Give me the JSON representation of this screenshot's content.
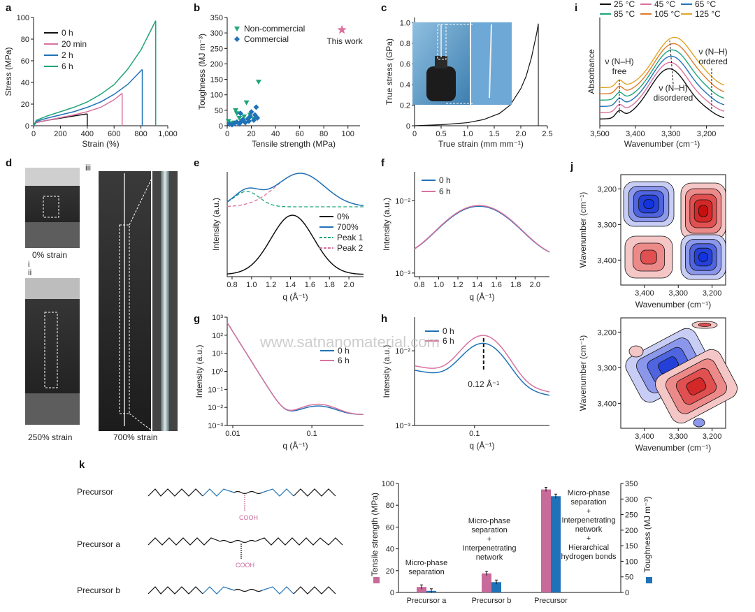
{
  "watermark": "www.satnanomaterial.com",
  "panels": {
    "a": {
      "letter": "a"
    },
    "b": {
      "letter": "b"
    },
    "c": {
      "letter": "c"
    },
    "d": {
      "letter": "d",
      "captions": [
        "i",
        "ii",
        "iii",
        "0% strain",
        "250% strain",
        "700% strain"
      ]
    },
    "e": {
      "letter": "e"
    },
    "f": {
      "letter": "f"
    },
    "g": {
      "letter": "g"
    },
    "h": {
      "letter": "h",
      "annotation": "0.12 Å⁻¹"
    },
    "i": {
      "letter": "i",
      "annotations": [
        "ν (N–H)",
        "free",
        "ν (N–H)",
        "disordered",
        "ν (N–H)",
        "ordered"
      ]
    },
    "j": {
      "letter": "j"
    },
    "k": {
      "letter": "k",
      "labels": [
        "Precursor",
        "Precursor a",
        "Precursor b"
      ],
      "cooh": "COOH"
    }
  },
  "colors": {
    "black": "#111111",
    "pink": "#d9739f",
    "blue": "#1f72b8",
    "green": "#1fa57a",
    "teal": "#26a7a0",
    "orange": "#e07b2a",
    "gold": "#e0a424",
    "ink_blue": "#1f72b8",
    "cooh": "#c86a9a"
  },
  "chart_data": [
    {
      "id": "a",
      "type": "line",
      "xlabel": "Strain (%)",
      "ylabel": "Stress (MPa)",
      "xlim": [
        0,
        1000
      ],
      "ylim": [
        0,
        100
      ],
      "xticks": [
        "0",
        "200",
        "400",
        "600",
        "800",
        "1,000"
      ],
      "yticks": [
        "0",
        "20",
        "40",
        "60",
        "80",
        "100"
      ],
      "series": [
        {
          "name": "0 h",
          "color": "#111111",
          "x": [
            0,
            20,
            100,
            200,
            300,
            400
          ],
          "y": [
            0,
            3,
            5,
            7,
            9,
            11
          ]
        },
        {
          "name": "20 min",
          "color": "#d9739f",
          "x": [
            0,
            20,
            100,
            200,
            300,
            400,
            500,
            600,
            660
          ],
          "y": [
            0,
            3,
            5,
            7.5,
            10,
            13,
            17,
            24,
            30
          ]
        },
        {
          "name": "2 h",
          "color": "#1f72b8",
          "x": [
            0,
            20,
            100,
            200,
            300,
            400,
            500,
            600,
            700,
            810
          ],
          "y": [
            0,
            4,
            7,
            10,
            13,
            17,
            22,
            29,
            38,
            52
          ]
        },
        {
          "name": "6 h",
          "color": "#1fa57a",
          "x": [
            0,
            20,
            100,
            200,
            300,
            400,
            500,
            600,
            700,
            800,
            910
          ],
          "y": [
            0,
            5,
            9,
            13,
            17,
            22,
            29,
            38,
            52,
            70,
            97
          ]
        }
      ]
    },
    {
      "id": "b",
      "type": "scatter",
      "xlabel": "Tensile strength (MPa)",
      "ylabel": "Toughness (MJ m⁻³)",
      "xlim": [
        0,
        110
      ],
      "ylim": [
        0,
        350
      ],
      "xticks": [
        "0",
        "20",
        "40",
        "60",
        "80",
        "100"
      ],
      "yticks": [
        "0",
        "50",
        "100",
        "150",
        "200",
        "250",
        "300",
        "350"
      ],
      "series": [
        {
          "name": "Non-commercial",
          "marker": "triangle",
          "color": "#1fa57a",
          "x": [
            1,
            3,
            7,
            8,
            10,
            12,
            16,
            19,
            26,
            22,
            14,
            6
          ],
          "y": [
            15,
            8,
            50,
            40,
            25,
            15,
            75,
            35,
            142,
            22,
            30,
            10
          ]
        },
        {
          "name": "Commercial",
          "marker": "diamond",
          "color": "#1f72b8",
          "x": [
            2,
            4,
            6,
            8,
            10,
            12,
            13,
            15,
            17,
            19,
            20,
            22,
            23,
            24,
            25,
            11,
            18
          ],
          "y": [
            5,
            3,
            8,
            12,
            6,
            15,
            20,
            10,
            22,
            30,
            45,
            18,
            35,
            60,
            25,
            40,
            15
          ]
        },
        {
          "name": "This work",
          "marker": "star",
          "color": "#d9739f",
          "x": [
            95
          ],
          "y": [
            310
          ]
        }
      ]
    },
    {
      "id": "c",
      "type": "line",
      "xlabel": "True strain (mm mm⁻¹)",
      "ylabel": "True stress (GPa)",
      "xlim": [
        0,
        2.5
      ],
      "ylim": [
        0,
        1.05
      ],
      "xticks": [
        "0",
        "0.5",
        "1.0",
        "1.5",
        "2.0",
        "2.5"
      ],
      "yticks": [
        "0",
        "0.2",
        "0.4",
        "0.6",
        "0.8",
        "1.0"
      ],
      "series": [
        {
          "color": "#111111",
          "x": [
            0,
            0.5,
            1.0,
            1.3,
            1.6,
            1.8,
            2.0,
            2.1,
            2.2,
            2.3,
            2.33
          ],
          "y": [
            0,
            0.01,
            0.03,
            0.06,
            0.12,
            0.2,
            0.36,
            0.48,
            0.66,
            0.9,
            0.99
          ]
        }
      ]
    },
    {
      "id": "i",
      "type": "line",
      "xlabel": "Wavenumber (cm⁻¹)",
      "ylabel": "Absorbance",
      "xlim": [
        3500,
        3150
      ],
      "xticks": [
        "3,500",
        "3,400",
        "3,300",
        "3,200"
      ],
      "series": [
        {
          "name": "25 °C",
          "color": "#111111"
        },
        {
          "name": "45 °C",
          "color": "#d9739f"
        },
        {
          "name": "65 °C",
          "color": "#1f72b8"
        },
        {
          "name": "85 °C",
          "color": "#1fa57a"
        },
        {
          "name": "105 °C",
          "color": "#e07b2a"
        },
        {
          "name": "125 °C",
          "color": "#e0a424"
        }
      ]
    },
    {
      "id": "e",
      "type": "line",
      "xlabel": "q (Å⁻¹)",
      "ylabel": "Intensity (a.u.)",
      "xlim": [
        0.75,
        2.15
      ],
      "xticks": [
        "0.8",
        "1.0",
        "1.2",
        "1.4",
        "1.6",
        "1.8",
        "2.0"
      ],
      "series": [
        {
          "name": "0%",
          "color": "#111111"
        },
        {
          "name": "700%",
          "color": "#1f72b8"
        },
        {
          "name": "Peak 1",
          "color": "#1fa57a",
          "dash": true
        },
        {
          "name": "Peak 2",
          "color": "#d9739f",
          "dash": true
        }
      ]
    },
    {
      "id": "f",
      "type": "line",
      "xlabel": "q (Å⁻¹)",
      "ylabel": "Intensity (a.u.)",
      "xlim": [
        0.75,
        2.15
      ],
      "yscale": "log",
      "xticks": [
        "0.8",
        "1.0",
        "1.2",
        "1.4",
        "1.6",
        "1.8",
        "2.0"
      ],
      "yticks": [
        "10⁻³",
        "10⁻²"
      ],
      "series": [
        {
          "name": "0 h",
          "color": "#1f72b8"
        },
        {
          "name": "6 h",
          "color": "#d9739f"
        }
      ]
    },
    {
      "id": "g",
      "type": "line",
      "xlabel": "q (Å⁻¹)",
      "ylabel": "Intensity (a.u.)",
      "xscale": "log",
      "yscale": "log",
      "xticks": [
        "0.01",
        "0.1"
      ],
      "yticks": [
        "10⁻³",
        "10⁻²",
        "10⁻¹",
        "10⁰",
        "10¹",
        "10²",
        "10³"
      ],
      "series": [
        {
          "name": "0 h",
          "color": "#1f72b8"
        },
        {
          "name": "6 h",
          "color": "#d9739f"
        }
      ]
    },
    {
      "id": "h",
      "type": "line",
      "xlabel": "q (Å⁻¹)",
      "ylabel": "Intensity (a.u.)",
      "xscale": "log",
      "yscale": "log",
      "xticks": [
        "0.1"
      ],
      "yticks": [
        "10⁻³",
        "10⁻²"
      ],
      "series": [
        {
          "name": "0 h",
          "color": "#1f72b8"
        },
        {
          "name": "6 h",
          "color": "#d9739f"
        }
      ]
    },
    {
      "id": "j",
      "type": "heatmap",
      "xlabel": "Wavenumber (cm⁻¹)",
      "ylabel": "Wavenumber (cm⁻¹)",
      "xticks": [
        "3,400",
        "3,300",
        "3,200"
      ],
      "yticks": [
        "3,200",
        "3,300",
        "3,400"
      ]
    },
    {
      "id": "k",
      "type": "bar",
      "categories": [
        "Precursor a",
        "Precursor b",
        "Precursor"
      ],
      "ylabel": "Tensile strength (MPa)",
      "y2label": "Toughness (MJ m⁻³)",
      "ylim": [
        0,
        100
      ],
      "y2lim": [
        0,
        350
      ],
      "yticks": [
        "0",
        "20",
        "40",
        "60",
        "80",
        "100"
      ],
      "y2ticks": [
        "0",
        "50",
        "100",
        "150",
        "200",
        "250",
        "300",
        "350"
      ],
      "series": [
        {
          "name": "Tensile strength",
          "color": "#c86a9a",
          "axis": "left",
          "values": [
            5,
            17.5,
            94.5
          ]
        },
        {
          "name": "Toughness",
          "color": "#1f72b8",
          "axis": "right",
          "values": [
            5,
            33,
            309
          ]
        }
      ],
      "annotations": [
        [
          "Micro-phase",
          "separation"
        ],
        [
          "Micro-phase",
          "separation",
          "+",
          "Interpenetrating",
          "network"
        ],
        [
          "Micro-phase",
          "separation",
          "+",
          "Interpenetrating",
          "network",
          "+",
          "Hierarchical",
          "hydrogen bonds"
        ]
      ]
    }
  ]
}
